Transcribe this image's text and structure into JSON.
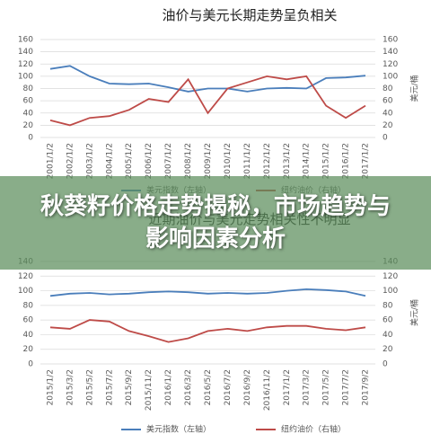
{
  "chart_data": [
    {
      "type": "line",
      "title": "油价与美元长期走势呈负相关",
      "y2_label": "美元/桶",
      "categories": [
        "2001/1/2",
        "2002/1/2",
        "2003/1/2",
        "2004/1/2",
        "2005/1/2",
        "2006/1/2",
        "2007/1/2",
        "2008/1/2",
        "2009/1/2",
        "2010/1/2",
        "2011/1/2",
        "2012/1/2",
        "2013/1/2",
        "2014/1/2",
        "2015/1/2",
        "2016/1/2",
        "2017/1/2"
      ],
      "series": [
        {
          "name": "美元指数（左轴）",
          "color": "#4a7ebb",
          "values": [
            112,
            117,
            100,
            88,
            87,
            88,
            82,
            75,
            80,
            80,
            75,
            80,
            81,
            80,
            97,
            98,
            101
          ]
        },
        {
          "name": "纽约油价（右轴）",
          "color": "#be4b48",
          "axis": "y2",
          "values": [
            28,
            20,
            32,
            35,
            45,
            63,
            58,
            95,
            40,
            80,
            90,
            100,
            95,
            100,
            52,
            32,
            52
          ]
        }
      ],
      "ylim": [
        0,
        160
      ],
      "yticks": [
        0,
        20,
        40,
        60,
        80,
        100,
        120,
        140,
        160
      ],
      "y2lim": [
        0,
        160
      ],
      "y2ticks": [
        0,
        20,
        40,
        60,
        80,
        100,
        120,
        140,
        160
      ]
    },
    {
      "type": "line",
      "title": "近期油价与美元走势相关性不明显",
      "y2_label": "美元/桶",
      "categories": [
        "2015/1/2",
        "2015/3/2",
        "2015/5/2",
        "2015/7/2",
        "2015/9/2",
        "2015/11/2",
        "2016/1/2",
        "2016/3/2",
        "2016/5/2",
        "2016/7/2",
        "2016/9/2",
        "2016/11/2",
        "2017/1/2",
        "2017/3/2",
        "2017/5/2",
        "2017/7/2",
        "2017/9/2"
      ],
      "series": [
        {
          "name": "美元指数（左轴）",
          "color": "#4a7ebb",
          "values": [
            93,
            96,
            97,
            95,
            96,
            98,
            99,
            98,
            96,
            97,
            96,
            97,
            100,
            102,
            101,
            99,
            93
          ]
        },
        {
          "name": "纽约油价（右轴）",
          "color": "#be4b48",
          "axis": "y2",
          "values": [
            50,
            48,
            60,
            58,
            45,
            38,
            30,
            35,
            45,
            48,
            45,
            50,
            52,
            52,
            48,
            46,
            50
          ]
        }
      ],
      "ylim": [
        0,
        140
      ],
      "yticks": [
        0,
        20,
        40,
        60,
        80,
        100,
        120,
        140
      ],
      "y2lim": [
        0,
        140
      ],
      "y2ticks": [
        0,
        20,
        40,
        60,
        80,
        100,
        120,
        140
      ]
    }
  ],
  "banner": {
    "title": "秋葵籽价格走势揭秘，市场趋势与影响因素分析"
  }
}
